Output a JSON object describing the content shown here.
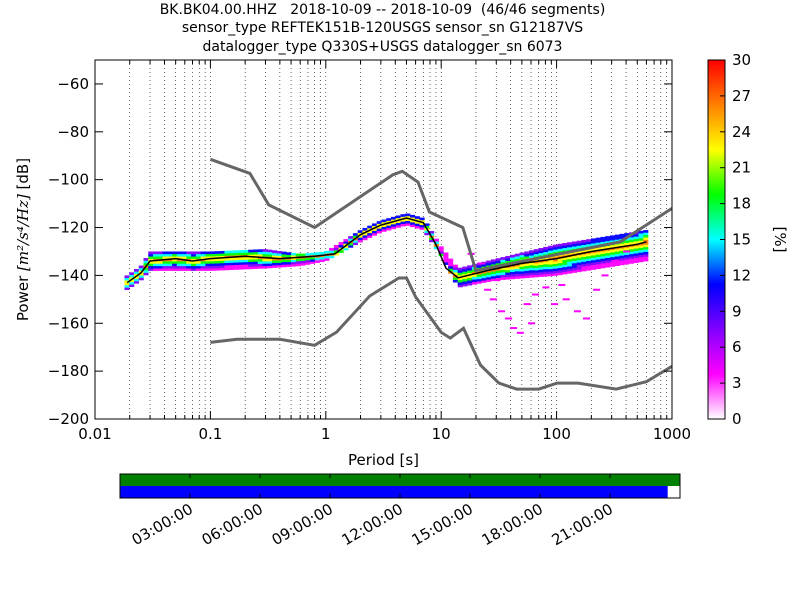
{
  "title_lines": [
    "BK.BK04.00.HHZ   2018-10-09 -- 2018-10-09  (46/46 segments)",
    "sensor_type REFTEK151B-120USGS sensor_sn G12187VS",
    "datalogger_type Q330S+USGS datalogger_sn 6073"
  ],
  "chart_data": {
    "type": "heatmap",
    "xlabel": "Period [s]",
    "ylabel_prefix": "Power ",
    "ylabel_units": "[m²/s⁴/Hz]",
    "ylabel_suffix": " [dB]",
    "x_scale": "log",
    "xlim": [
      0.01,
      1000
    ],
    "ylim": [
      -200,
      -50
    ],
    "x_ticks": [
      0.01,
      0.1,
      1,
      10,
      100,
      1000
    ],
    "x_tick_labels": [
      "0.01",
      "0.1",
      "1",
      "10",
      "100",
      "1000"
    ],
    "y_ticks": [
      -200,
      -180,
      -160,
      -140,
      -120,
      -100,
      -80,
      -60
    ],
    "y_tick_labels": [
      "−200",
      "−180",
      "−160",
      "−140",
      "−120",
      "−100",
      "−80",
      "−60"
    ],
    "grid": "dotted vertical lines, log minor",
    "colorbar": {
      "label": "[%]",
      "range": [
        0,
        30
      ],
      "ticks": [
        0,
        3,
        6,
        9,
        12,
        15,
        18,
        21,
        24,
        27,
        30
      ],
      "tick_labels": [
        "0",
        "3",
        "6",
        "9",
        "12",
        "15",
        "18",
        "21",
        "24",
        "27",
        "30"
      ],
      "colormap": [
        "#ffffff",
        "#ff00ff",
        "#8000ff",
        "#0000ff",
        "#00ffff",
        "#00ff00",
        "#ffff00",
        "#ff8000",
        "#ff0000"
      ]
    },
    "noise_models": {
      "color": "#666666",
      "high": [
        [
          0.1,
          -91.5
        ],
        [
          0.22,
          -97.4
        ],
        [
          0.32,
          -110.5
        ],
        [
          0.8,
          -120
        ],
        [
          3.8,
          -98
        ],
        [
          4.6,
          -96.5
        ],
        [
          6.3,
          -101
        ],
        [
          7.9,
          -113.5
        ],
        [
          15.4,
          -120
        ],
        [
          20,
          -138
        ],
        [
          354.8,
          -126
        ],
        [
          1000,
          -112
        ]
      ],
      "low": [
        [
          0.1,
          -168
        ],
        [
          0.17,
          -166.7
        ],
        [
          0.4,
          -166.7
        ],
        [
          0.8,
          -169.2
        ],
        [
          1.24,
          -163.7
        ],
        [
          2.4,
          -148.6
        ],
        [
          4.3,
          -141.1
        ],
        [
          5,
          -141.1
        ],
        [
          6,
          -149
        ],
        [
          10,
          -163.8
        ],
        [
          12,
          -166.2
        ],
        [
          15.6,
          -162.1
        ],
        [
          21.9,
          -177.5
        ],
        [
          31.6,
          -185
        ],
        [
          45,
          -187.5
        ],
        [
          70,
          -187.5
        ],
        [
          101,
          -185
        ],
        [
          154,
          -185
        ],
        [
          328,
          -187.5
        ],
        [
          600,
          -184.4
        ],
        [
          1000,
          -178
        ]
      ]
    },
    "mean": {
      "color": "#000000",
      "points": [
        [
          0.019,
          -143
        ],
        [
          0.025,
          -139
        ],
        [
          0.03,
          -134
        ],
        [
          0.05,
          -133
        ],
        [
          0.07,
          -134
        ],
        [
          0.1,
          -133
        ],
        [
          0.2,
          -132
        ],
        [
          0.4,
          -133
        ],
        [
          0.8,
          -132
        ],
        [
          1.2,
          -131
        ],
        [
          2,
          -123
        ],
        [
          3,
          -119
        ],
        [
          5,
          -116
        ],
        [
          7,
          -118
        ],
        [
          9,
          -127
        ],
        [
          11,
          -137
        ],
        [
          14,
          -141
        ],
        [
          25,
          -138
        ],
        [
          50,
          -135
        ],
        [
          100,
          -133
        ],
        [
          200,
          -130
        ],
        [
          500,
          -127
        ],
        [
          600,
          -126
        ]
      ]
    },
    "upper_band": [
      [
        0.019,
        -140
      ],
      [
        0.025,
        -136
      ],
      [
        0.03,
        -130
      ],
      [
        0.1,
        -130
      ],
      [
        0.3,
        -129
      ],
      [
        0.6,
        -131
      ],
      [
        1,
        -130
      ],
      [
        2,
        -121
      ],
      [
        3,
        -117
      ],
      [
        5,
        -114
      ],
      [
        7,
        -116
      ],
      [
        10,
        -128
      ],
      [
        14,
        -137
      ],
      [
        30,
        -133
      ],
      [
        100,
        -127
      ],
      [
        600,
        -121
      ]
    ],
    "lower_band": [
      [
        0.019,
        -146
      ],
      [
        0.025,
        -142
      ],
      [
        0.03,
        -138
      ],
      [
        0.1,
        -138
      ],
      [
        0.3,
        -137
      ],
      [
        0.6,
        -136
      ],
      [
        1,
        -134
      ],
      [
        2,
        -126
      ],
      [
        3,
        -122
      ],
      [
        5,
        -119
      ],
      [
        7,
        -121
      ],
      [
        10,
        -132
      ],
      [
        14,
        -145
      ],
      [
        30,
        -142
      ],
      [
        100,
        -140
      ],
      [
        600,
        -134
      ]
    ]
  },
  "availability": {
    "coverage_colors": [
      "#008000",
      "#0000ff"
    ],
    "coverage_fraction": 0.978,
    "time_labels": [
      "03:00:00",
      "06:00:00",
      "09:00:00",
      "12:00:00",
      "15:00:00",
      "18:00:00",
      "21:00:00"
    ]
  }
}
